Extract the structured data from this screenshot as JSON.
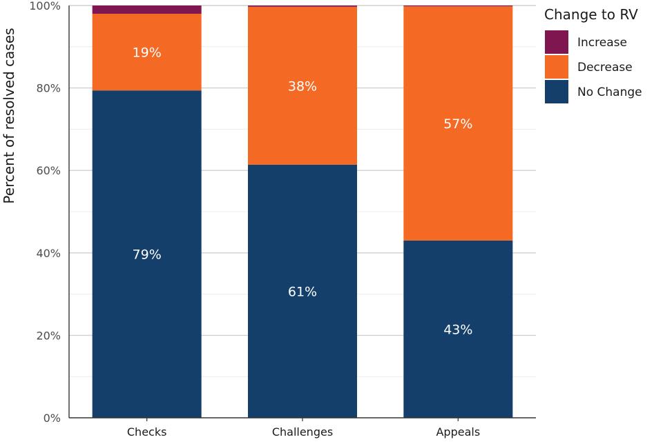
{
  "chart_data": {
    "type": "bar",
    "stacked": true,
    "categories": [
      "Checks",
      "Challenges",
      "Appeals"
    ],
    "series": [
      {
        "name": "No Change",
        "color": "#143f6b",
        "values": [
          79.4,
          61.4,
          43.0
        ],
        "labels": [
          "79%",
          "61%",
          "43%"
        ]
      },
      {
        "name": "Decrease",
        "color": "#f46a25",
        "values": [
          18.6,
          38.3,
          56.8
        ],
        "labels": [
          "19%",
          "38%",
          "57%"
        ]
      },
      {
        "name": "Increase",
        "color": "#801650",
        "values": [
          2.0,
          0.3,
          0.2
        ],
        "labels": [
          "",
          "",
          ""
        ]
      }
    ],
    "ylabel": "Percent of resolved cases",
    "xlabel": "",
    "ylim": [
      0,
      100
    ],
    "yticks": [
      0,
      20,
      40,
      60,
      80,
      100
    ],
    "ytick_labels": [
      "0%",
      "20%",
      "40%",
      "60%",
      "80%",
      "100%"
    ],
    "grid": true,
    "legend": {
      "title": "Change to RV",
      "position": "top-right",
      "items": [
        "Increase",
        "Decrease",
        "No Change"
      ]
    }
  }
}
